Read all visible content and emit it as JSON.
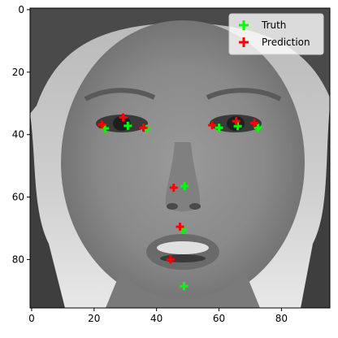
{
  "chart_data": {
    "type": "scatter",
    "title": "",
    "xlabel": "",
    "ylabel": "",
    "xlim": [
      -0.5,
      95.5
    ],
    "ylim": [
      95.5,
      -0.5
    ],
    "x_ticks": [
      0,
      20,
      40,
      60,
      80
    ],
    "y_ticks": [
      0,
      20,
      40,
      60,
      80
    ],
    "background": "grayscale face image",
    "grid": false,
    "legend_position": "top-right",
    "series": [
      {
        "name": "Truth",
        "color": "#00ff00",
        "marker": "plus",
        "points": [
          {
            "x": 23.5,
            "y": 38.0
          },
          {
            "x": 30.8,
            "y": 37.2
          },
          {
            "x": 36.8,
            "y": 38.2
          },
          {
            "x": 60.0,
            "y": 37.8
          },
          {
            "x": 66.0,
            "y": 37.3
          },
          {
            "x": 72.5,
            "y": 37.8
          },
          {
            "x": 49.0,
            "y": 56.5
          },
          {
            "x": 48.5,
            "y": 70.5
          },
          {
            "x": 48.8,
            "y": 88.5
          }
        ]
      },
      {
        "name": "Prediction",
        "color": "#ff0000",
        "marker": "plus",
        "points": [
          {
            "x": 22.5,
            "y": 36.8
          },
          {
            "x": 29.3,
            "y": 34.5
          },
          {
            "x": 35.8,
            "y": 37.8
          },
          {
            "x": 57.8,
            "y": 37.0
          },
          {
            "x": 65.5,
            "y": 35.7
          },
          {
            "x": 71.3,
            "y": 36.3
          },
          {
            "x": 45.5,
            "y": 57.0
          },
          {
            "x": 47.5,
            "y": 69.5
          },
          {
            "x": 44.5,
            "y": 80.0
          }
        ]
      }
    ]
  }
}
